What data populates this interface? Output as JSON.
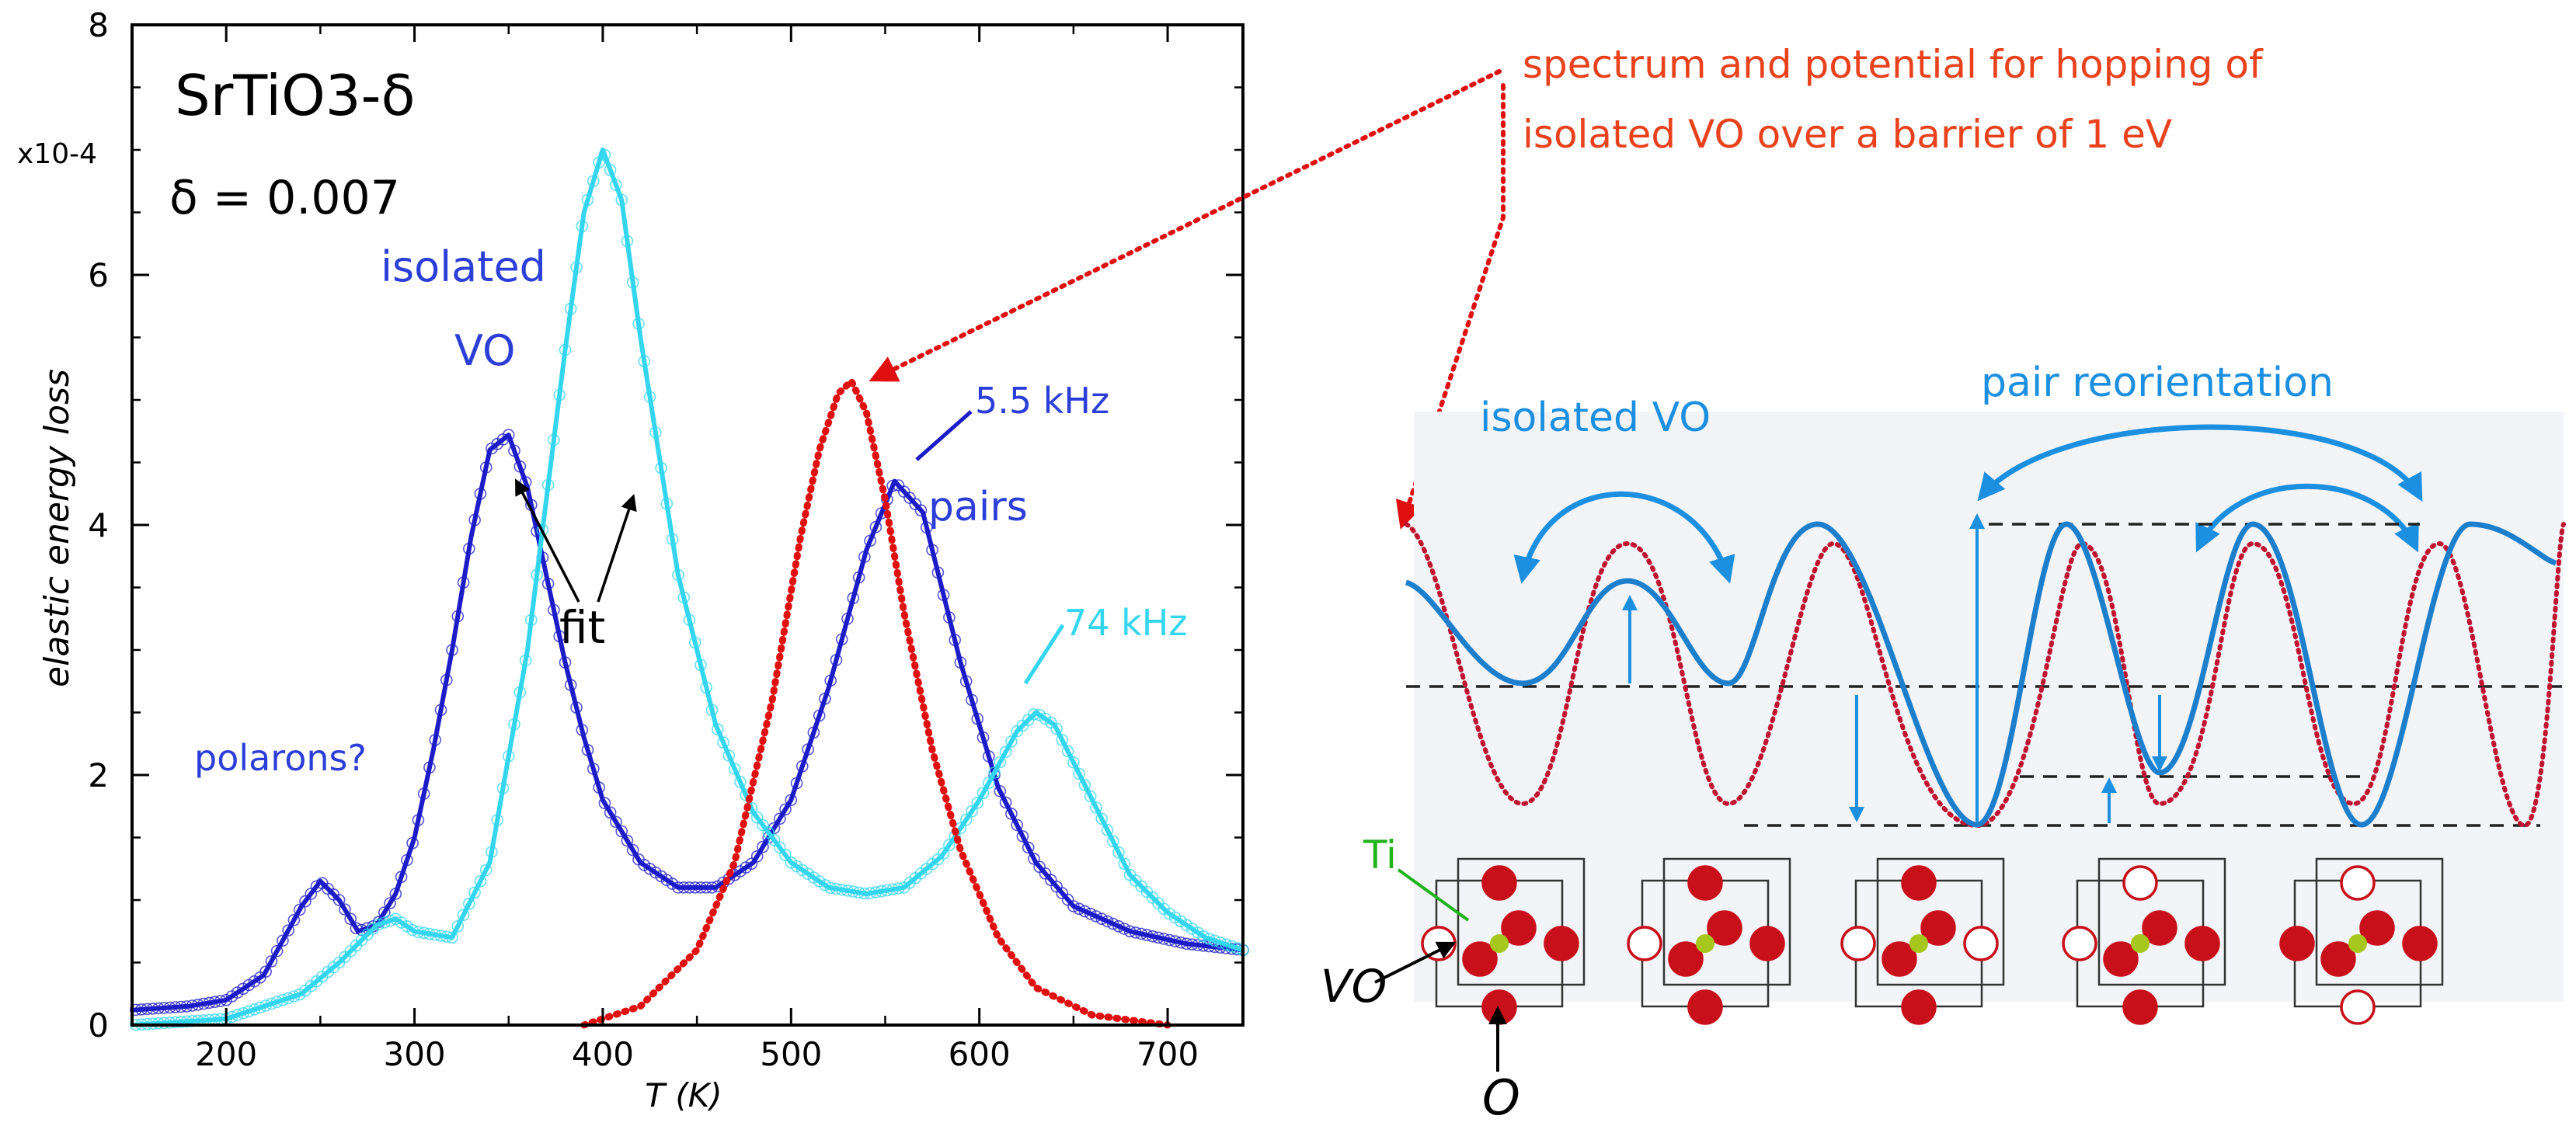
{
  "chart_data": {
    "type": "line",
    "title": "SrTiO3-δ",
    "subtitle": "δ = 0.007",
    "xlabel": "T (K)",
    "ylabel": "elastic energy loss",
    "y_multiplier": "x10-4",
    "xlim": [
      150,
      740
    ],
    "ylim": [
      0,
      8
    ],
    "x_ticks": [
      200,
      300,
      400,
      500,
      600,
      700
    ],
    "y_ticks": [
      0,
      2,
      4,
      6,
      8
    ],
    "series": [
      {
        "name": "5.5 kHz",
        "color": "#1c1cc8",
        "x": [
          150,
          180,
          200,
          220,
          240,
          250,
          260,
          270,
          280,
          290,
          300,
          310,
          320,
          330,
          340,
          350,
          360,
          370,
          380,
          390,
          400,
          420,
          440,
          460,
          480,
          500,
          520,
          540,
          555,
          570,
          590,
          610,
          630,
          650,
          680,
          710,
          740
        ],
        "values": [
          0.12,
          0.15,
          0.2,
          0.4,
          0.95,
          1.15,
          1.0,
          0.75,
          0.8,
          1.05,
          1.5,
          2.2,
          3.0,
          3.9,
          4.6,
          4.72,
          4.3,
          3.6,
          2.9,
          2.3,
          1.8,
          1.3,
          1.1,
          1.1,
          1.3,
          1.8,
          2.7,
          3.8,
          4.35,
          4.1,
          2.9,
          1.9,
          1.3,
          0.95,
          0.75,
          0.65,
          0.6
        ]
      },
      {
        "name": "74 kHz",
        "color": "#33d6ee",
        "x": [
          150,
          200,
          240,
          260,
          280,
          290,
          300,
          320,
          340,
          360,
          370,
          380,
          390,
          400,
          410,
          420,
          440,
          460,
          480,
          500,
          520,
          540,
          560,
          580,
          600,
          620,
          630,
          640,
          660,
          680,
          700,
          720,
          740
        ],
        "values": [
          0,
          0.05,
          0.25,
          0.5,
          0.8,
          0.85,
          0.75,
          0.7,
          1.3,
          3.0,
          4.2,
          5.4,
          6.5,
          7.0,
          6.6,
          5.5,
          3.6,
          2.4,
          1.7,
          1.3,
          1.1,
          1.05,
          1.1,
          1.35,
          1.8,
          2.35,
          2.5,
          2.4,
          1.8,
          1.2,
          0.9,
          0.7,
          0.6
        ]
      },
      {
        "name": "spectrum for isolated VO hopping over a 1 eV barrier",
        "color": "#e01010",
        "x": [
          390,
          420,
          450,
          470,
          490,
          505,
          515,
          525,
          532,
          540,
          550,
          560,
          575,
          590,
          610,
          630,
          660,
          700
        ],
        "values": [
          0,
          0.15,
          0.6,
          1.3,
          2.6,
          3.9,
          4.6,
          5.05,
          5.15,
          4.9,
          4.2,
          3.3,
          2.2,
          1.4,
          0.7,
          0.3,
          0.08,
          0
        ]
      }
    ],
    "annotations": [
      "isolated",
      "VO",
      "polarons?",
      "fit",
      "5.5 kHz",
      "74 kHz",
      "pairs"
    ]
  },
  "right_panel": {
    "caption_line1": "spectrum and potential for hopping of",
    "caption_line2": "isolated VO  over a barrier of 1 eV",
    "label_isolated": "isolated VO",
    "label_pair": "pair reorientation",
    "label_ti": "Ti",
    "label_vo": "VO",
    "label_o": "O"
  }
}
